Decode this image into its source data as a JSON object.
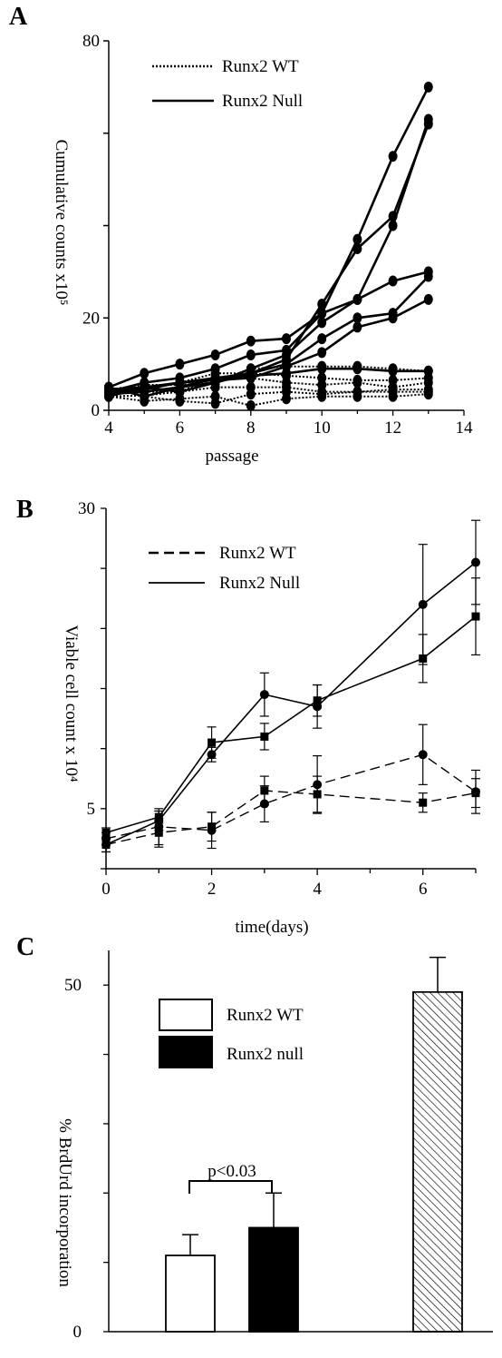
{
  "panels": {
    "a": {
      "letter": "A"
    },
    "b": {
      "letter": "B"
    },
    "c": {
      "letter": "C"
    }
  },
  "chart_data": [
    {
      "id": "A",
      "type": "line",
      "xlabel": "passage",
      "ylabel": "Cumulative counts x10⁵",
      "xlim": [
        4,
        14
      ],
      "ylim": [
        0,
        80
      ],
      "x_ticks": [
        "4",
        "6",
        "8",
        "10",
        "12",
        "14"
      ],
      "y_ticks": [
        "0",
        "20",
        "80"
      ],
      "legend": [
        "Runx2 WT",
        "Runx2 Null"
      ],
      "legend_position": "top-left",
      "x": [
        4,
        5,
        6,
        7,
        8,
        9,
        10,
        11,
        12,
        13
      ],
      "series": [
        {
          "name": "Runx2 WT",
          "style": "dotted",
          "values": [
            3,
            3.2,
            4,
            7,
            7,
            6,
            5.5,
            6,
            5,
            6
          ]
        },
        {
          "name": "Runx2 WT",
          "style": "dotted",
          "values": [
            4,
            5,
            6,
            8,
            8,
            7.5,
            7,
            6.5,
            6.5,
            7
          ]
        },
        {
          "name": "Runx2 WT",
          "style": "dotted",
          "values": [
            5,
            3,
            2,
            1.5,
            3.5,
            4,
            3.5,
            4,
            4.5,
            4.5
          ]
        },
        {
          "name": "Runx2 WT",
          "style": "dotted",
          "values": [
            3,
            2,
            2.5,
            3,
            1,
            2.5,
            3,
            3,
            3,
            3.5
          ]
        },
        {
          "name": "Runx2 WT",
          "style": "dotted",
          "values": [
            4,
            4,
            4,
            5,
            5,
            5,
            4,
            4,
            4,
            4
          ]
        },
        {
          "name": "Runx2 WT",
          "style": "dotted",
          "values": [
            4.5,
            5.5,
            5.5,
            6,
            9,
            9.5,
            9.5,
            9.5,
            9,
            8.5
          ]
        },
        {
          "name": "Runx2 Null",
          "style": "solid",
          "values": [
            4,
            6,
            7,
            9,
            12,
            13,
            21,
            37,
            55,
            70
          ]
        },
        {
          "name": "Runx2 Null",
          "style": "solid",
          "values": [
            5,
            3,
            5,
            7,
            8,
            11,
            23,
            35,
            42,
            62
          ]
        },
        {
          "name": "Runx2 Null",
          "style": "solid",
          "values": [
            4.5,
            5,
            4,
            6,
            9,
            12,
            19,
            24,
            40,
            63
          ]
        },
        {
          "name": "Runx2 Null",
          "style": "solid",
          "values": [
            5,
            8,
            10,
            12,
            15,
            15.5,
            21,
            24,
            28,
            30
          ]
        },
        {
          "name": "Runx2 Null",
          "style": "solid",
          "values": [
            3.5,
            4,
            5,
            6,
            8,
            10,
            15.5,
            20,
            21,
            29
          ]
        },
        {
          "name": "Runx2 Null",
          "style": "solid",
          "values": [
            4,
            4.5,
            6,
            6.5,
            7,
            9.5,
            12.5,
            18,
            20,
            24
          ]
        },
        {
          "name": "Runx2 Null",
          "style": "solid",
          "values": [
            3,
            5,
            6,
            7,
            7.5,
            8,
            9,
            9,
            8.5,
            8.5
          ]
        }
      ]
    },
    {
      "id": "B",
      "type": "line",
      "xlabel": "time(days)",
      "ylabel": "Viable cell count x 10⁴",
      "xlim": [
        0,
        7
      ],
      "ylim": [
        0,
        30
      ],
      "x_ticks": [
        "0",
        "2",
        "4",
        "6"
      ],
      "y_ticks": [
        "5",
        "30"
      ],
      "legend": [
        "Runx2 WT",
        "Runx2 Null"
      ],
      "legend_position": "top-left",
      "x": [
        0,
        1,
        2,
        3,
        4,
        6,
        7
      ],
      "series": [
        {
          "name": "Runx2 WT",
          "style": "dashed",
          "marker": "square",
          "values": [
            2,
            3,
            3.5,
            6.5,
            6.2,
            5.5,
            6.3
          ],
          "errors": [
            0.6,
            1.2,
            1.2,
            1.2,
            1.5,
            0.8,
            1.2
          ]
        },
        {
          "name": "Runx2 WT",
          "style": "dashed",
          "marker": "circle",
          "values": [
            2.5,
            3.5,
            3.2,
            5.4,
            7,
            9.5,
            6.4
          ],
          "errors": [
            0.5,
            1.5,
            1.5,
            1.5,
            2.4,
            2.5,
            1.8
          ]
        },
        {
          "name": "Runx2 Null",
          "style": "solid",
          "marker": "circle",
          "values": [
            2,
            4,
            9.5,
            14.5,
            13.5,
            22,
            25.5
          ],
          "errors": [
            0.6,
            0.8,
            0.6,
            1.8,
            1.8,
            5,
            3.5
          ]
        },
        {
          "name": "Runx2 Null",
          "style": "solid",
          "marker": "square",
          "values": [
            3,
            4.3,
            10.5,
            11,
            14,
            17.5,
            21
          ],
          "errors": [
            0.4,
            0.5,
            1.3,
            1.1,
            1.3,
            2,
            3.2
          ]
        }
      ]
    },
    {
      "id": "C",
      "type": "bar",
      "ylabel": "% BrdUrd incorporation",
      "ylim": [
        0,
        55
      ],
      "y_ticks": [
        "0",
        "50"
      ],
      "legend": [
        "Runx2 WT",
        "Runx2 null"
      ],
      "legend_position": "top-left",
      "annotation": "p<0.03",
      "bars": [
        {
          "fill": "white",
          "value": 11,
          "error": 3
        },
        {
          "fill": "black",
          "value": 15,
          "error": 5
        },
        {
          "fill": "hatched",
          "value": 49,
          "error": 5
        }
      ]
    }
  ]
}
